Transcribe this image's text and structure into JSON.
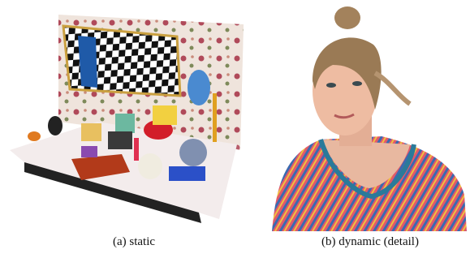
{
  "figure": {
    "panels": [
      {
        "caption": "(a) static"
      },
      {
        "caption": "(b) dynamic (detail)"
      }
    ]
  }
}
